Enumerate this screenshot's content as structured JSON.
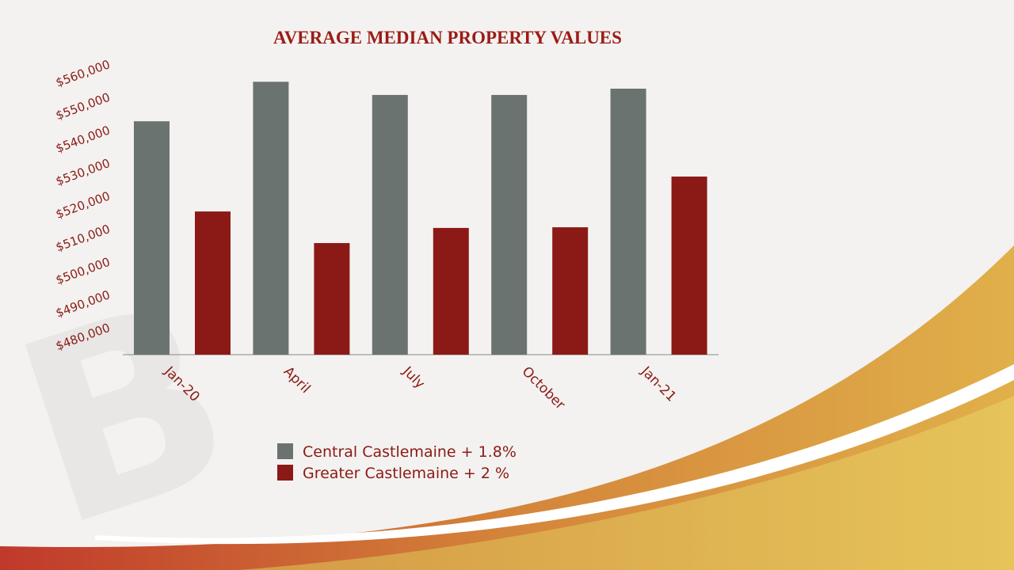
{
  "chart_data": {
    "type": "bar",
    "title": "AVERAGE MEDIAN PROPERTY VALUES",
    "categories": [
      "Jan-20",
      "April",
      "July",
      "October",
      "Jan-21"
    ],
    "series": [
      {
        "name": "Central Castlemaine + 1.8%",
        "color": "#6b7370",
        "values": [
          544400,
          556400,
          552400,
          552400,
          554300
        ]
      },
      {
        "name": "Greater Castlemaine + 2 %",
        "color": "#8b1a16",
        "values": [
          517000,
          507400,
          512000,
          512200,
          527600
        ]
      }
    ],
    "ylim": [
      473500,
      562000
    ],
    "yticks": [
      {
        "value": 480000,
        "label": "$480,000"
      },
      {
        "value": 490000,
        "label": "$490,000"
      },
      {
        "value": 500000,
        "label": "$500,000"
      },
      {
        "value": 510000,
        "label": "$510,000"
      },
      {
        "value": 520000,
        "label": "$520,000"
      },
      {
        "value": 530000,
        "label": "$530,000"
      },
      {
        "value": 540000,
        "label": "$540,000"
      },
      {
        "value": 550000,
        "label": "$550,000"
      },
      {
        "value": 560000,
        "label": "$560,000"
      }
    ],
    "grid": false
  }
}
